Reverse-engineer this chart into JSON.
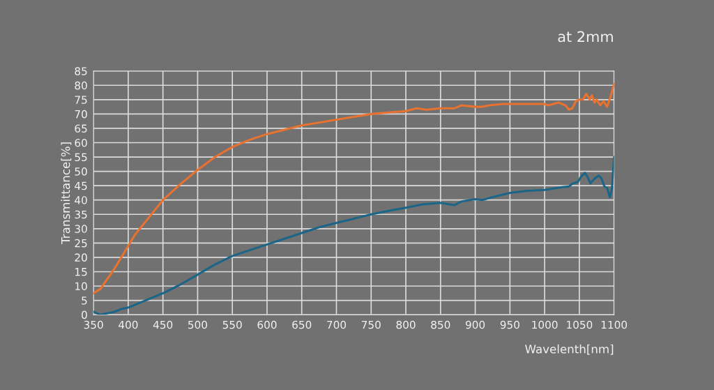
{
  "chart_data": {
    "type": "line",
    "title": "at 2mm",
    "xlabel": "Wavelenth[nm]",
    "ylabel": "Transmittance[%]",
    "xlim": [
      350,
      1100
    ],
    "xticks": [
      350,
      400,
      450,
      500,
      550,
      600,
      650,
      700,
      750,
      800,
      850,
      900,
      950,
      1000,
      1050,
      1100
    ],
    "ylim": [
      0,
      85
    ],
    "yticks": [
      0,
      5,
      10,
      15,
      20,
      25,
      30,
      35,
      40,
      45,
      50,
      55,
      60,
      65,
      70,
      75,
      80,
      85
    ],
    "grid": true,
    "marker": "none",
    "line_style": "solid",
    "series": [
      {
        "color": "#e8722f",
        "x": [
          350,
          360,
          370,
          380,
          390,
          400,
          410,
          420,
          430,
          440,
          450,
          475,
          500,
          525,
          550,
          575,
          600,
          625,
          650,
          675,
          700,
          725,
          750,
          775,
          800,
          815,
          830,
          850,
          870,
          880,
          900,
          910,
          920,
          940,
          960,
          980,
          1000,
          1005,
          1020,
          1030,
          1035,
          1040,
          1045,
          1050,
          1055,
          1060,
          1065,
          1068,
          1072,
          1075,
          1080,
          1085,
          1090,
          1095,
          1100
        ],
        "values": [
          7.5,
          9,
          12.5,
          16,
          20,
          24,
          28,
          31,
          34,
          37,
          40,
          45.5,
          50.5,
          55,
          58.5,
          61,
          63,
          64.5,
          66,
          67,
          68,
          69,
          70,
          70.5,
          71,
          72,
          71.5,
          72,
          72,
          73,
          72.5,
          72.5,
          73,
          73.5,
          73.5,
          73.5,
          73.5,
          73,
          74,
          73,
          71.5,
          72,
          74.5,
          75,
          75,
          77,
          75,
          76.5,
          74,
          75,
          73,
          74.5,
          72.5,
          76,
          80.5
        ]
      },
      {
        "color": "#1b6688",
        "x": [
          350,
          355,
          360,
          370,
          380,
          390,
          400,
          425,
          450,
          475,
          500,
          525,
          550,
          575,
          600,
          625,
          650,
          675,
          700,
          725,
          750,
          775,
          800,
          825,
          850,
          860,
          870,
          880,
          900,
          910,
          925,
          950,
          975,
          1000,
          1025,
          1035,
          1040,
          1048,
          1052,
          1058,
          1062,
          1066,
          1072,
          1078,
          1082,
          1086,
          1090,
          1094,
          1097,
          1100
        ],
        "values": [
          1,
          0.5,
          0,
          0.5,
          1,
          2,
          2.5,
          5,
          7.5,
          10.5,
          14,
          17.5,
          20.5,
          22.5,
          24.5,
          26.5,
          28.5,
          30.5,
          32,
          33.5,
          35,
          36.2,
          37.3,
          38.5,
          39,
          38.6,
          38.2,
          39.5,
          40.3,
          40,
          41,
          42.5,
          43.2,
          43.5,
          44.5,
          44.7,
          45.7,
          46.3,
          48,
          49.5,
          48,
          45.8,
          47.5,
          48.5,
          47.5,
          44.8,
          44.2,
          41,
          44,
          55
        ]
      }
    ]
  }
}
